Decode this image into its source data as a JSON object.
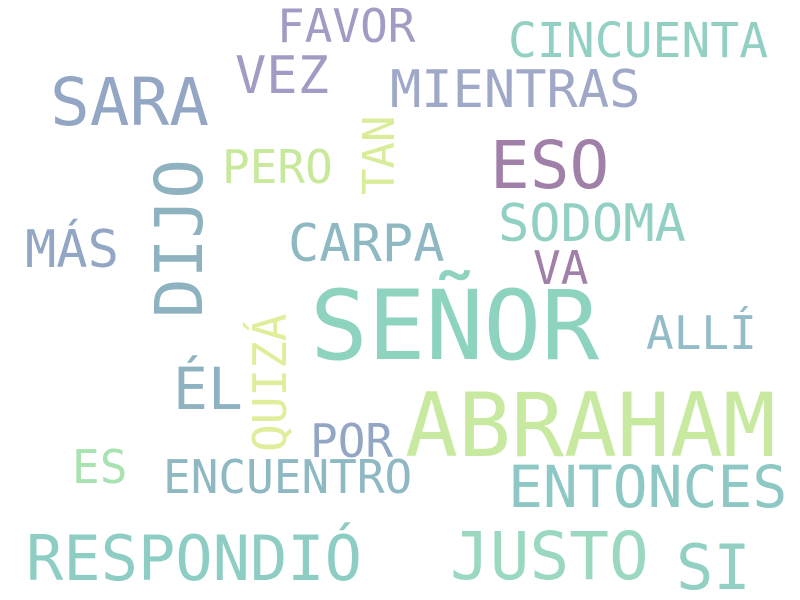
{
  "words": [
    {
      "text": "FAVOR",
      "color": "#a39bc4"
    },
    {
      "text": "CINCUENTA",
      "color": "#93d0c4"
    },
    {
      "text": "VEZ",
      "color": "#a39bc4"
    },
    {
      "text": "SARA",
      "color": "#93a6c4"
    },
    {
      "text": "MIENTRAS",
      "color": "#a0a8c8"
    },
    {
      "text": "TAN",
      "color": "#d8ec9a"
    },
    {
      "text": "PERO",
      "color": "#c8e89c"
    },
    {
      "text": "ESO",
      "color": "#a080a8"
    },
    {
      "text": "DIJO",
      "color": "#8eb2c0"
    },
    {
      "text": "SODOMA",
      "color": "#93d0c4"
    },
    {
      "text": "MÁS",
      "color": "#93a6c4"
    },
    {
      "text": "CARPA",
      "color": "#8eb8c2"
    },
    {
      "text": "VA",
      "color": "#a080a8"
    },
    {
      "text": "SEÑOR",
      "color": "#8ed2c0"
    },
    {
      "text": "ALLÍ",
      "color": "#93bcc8"
    },
    {
      "text": "QUIZÁ",
      "color": "#e0ee9c"
    },
    {
      "text": "ÉL",
      "color": "#8eb2c0"
    },
    {
      "text": "ABRAHAM",
      "color": "#c8eaa0"
    },
    {
      "text": "POR",
      "color": "#93a6c4"
    },
    {
      "text": "ES",
      "color": "#a8e2b0"
    },
    {
      "text": "ENCUENTRO",
      "color": "#8eb8c2"
    },
    {
      "text": "ENTONCES",
      "color": "#8ec8c4"
    },
    {
      "text": "RESPONDIÓ",
      "color": "#8ecdc4"
    },
    {
      "text": "JUSTO",
      "color": "#9ad8c0"
    },
    {
      "text": "SI",
      "color": "#93d0c4"
    }
  ]
}
